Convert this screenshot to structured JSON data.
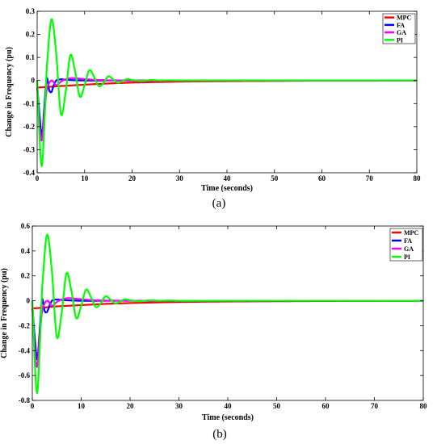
{
  "chart_data": [
    {
      "panel": "a",
      "type": "line",
      "caption": "(a)",
      "xlabel": "Time (seconds)",
      "ylabel": "Change in Frequency (pu)",
      "xlim": [
        0,
        80
      ],
      "ylim": [
        -0.4,
        0.3
      ],
      "xticks": [
        0,
        10,
        20,
        30,
        40,
        50,
        60,
        70,
        80
      ],
      "yticks": [
        0.3,
        0.2,
        0.1,
        0,
        -0.1,
        -0.2,
        -0.3,
        -0.4
      ],
      "ytick_labels": [
        "0.3",
        "0.2",
        "0.1",
        "0",
        "-0.1",
        "-0.2",
        "-0.3",
        "-0.4"
      ],
      "legend_position": "top-right",
      "series": [
        {
          "name": "MPC",
          "color": "#ff0000",
          "x": [
            0,
            0.5,
            2,
            5,
            10,
            15,
            20,
            30,
            40,
            50,
            60,
            70,
            80
          ],
          "y": [
            -0.03,
            -0.03,
            -0.028,
            -0.024,
            -0.018,
            -0.013,
            -0.009,
            -0.005,
            -0.003,
            -0.002,
            -0.001,
            -0.001,
            0
          ]
        },
        {
          "name": "FA",
          "color": "#0000ff",
          "x": [
            0,
            0.5,
            1,
            1.5,
            2,
            2.5,
            3,
            3.5,
            4,
            5,
            6,
            8,
            10,
            15,
            20,
            30,
            40,
            80
          ],
          "y": [
            -0.03,
            -0.15,
            -0.24,
            -0.12,
            0.01,
            -0.04,
            -0.05,
            -0.02,
            0.0,
            0.005,
            0.003,
            0.001,
            0,
            0,
            0,
            0,
            0,
            0
          ]
        },
        {
          "name": "GA",
          "color": "#ff00ff",
          "x": [
            0,
            0.5,
            1,
            1.5,
            2,
            3,
            4,
            5,
            6,
            7,
            8,
            9,
            10,
            12,
            15,
            20,
            30,
            40,
            80
          ],
          "y": [
            -0.03,
            -0.2,
            -0.26,
            -0.15,
            -0.04,
            0.0,
            -0.02,
            -0.005,
            0.005,
            0.01,
            0.01,
            0.008,
            0.006,
            0.003,
            0.001,
            0,
            0,
            0,
            0
          ]
        },
        {
          "name": "PI",
          "color": "#00ff00",
          "x": [
            0,
            0.5,
            1,
            1.5,
            2,
            3,
            4,
            5,
            6,
            7,
            8,
            9,
            10,
            11,
            12,
            13,
            14,
            15,
            16,
            17,
            18,
            19,
            20,
            22,
            24,
            26,
            28,
            30,
            35,
            40,
            80
          ],
          "y": [
            0,
            -0.25,
            -0.37,
            -0.2,
            0.05,
            0.265,
            0.12,
            -0.145,
            -0.05,
            0.11,
            0.04,
            -0.07,
            -0.02,
            0.045,
            0.015,
            -0.025,
            -0.01,
            0.018,
            0.005,
            -0.01,
            -0.002,
            0.006,
            0.002,
            -0.002,
            0.002,
            0,
            0.001,
            0,
            0,
            0,
            0
          ]
        }
      ]
    },
    {
      "panel": "b",
      "type": "line",
      "caption": "(b)",
      "xlabel": "Time (seconds)",
      "ylabel": "Change in Frequency (pu)",
      "xlim": [
        0,
        80
      ],
      "ylim": [
        -0.8,
        0.6
      ],
      "xticks": [
        0,
        10,
        20,
        30,
        40,
        50,
        60,
        70,
        80
      ],
      "yticks": [
        0.6,
        0.4,
        0.2,
        0,
        -0.2,
        -0.4,
        -0.6,
        -0.8
      ],
      "ytick_labels": [
        "0.6",
        "0.4",
        "0.2",
        "0",
        "-0.2",
        "-0.4",
        "-0.6",
        "-0.8"
      ],
      "legend_position": "top-right",
      "series": [
        {
          "name": "MPC",
          "color": "#ff0000",
          "x": [
            0,
            0.5,
            2,
            5,
            10,
            15,
            20,
            30,
            40,
            50,
            60,
            70,
            80
          ],
          "y": [
            -0.06,
            -0.06,
            -0.055,
            -0.045,
            -0.035,
            -0.025,
            -0.018,
            -0.01,
            -0.006,
            -0.004,
            -0.002,
            -0.001,
            0
          ]
        },
        {
          "name": "FA",
          "color": "#0000ff",
          "x": [
            0,
            0.5,
            1,
            1.5,
            2,
            2.5,
            3,
            3.5,
            4,
            5,
            6,
            8,
            10,
            15,
            20,
            30,
            40,
            80
          ],
          "y": [
            -0.06,
            -0.3,
            -0.47,
            -0.25,
            0.01,
            -0.08,
            -0.09,
            -0.04,
            0.0,
            0.01,
            0.006,
            0.002,
            0,
            0,
            0,
            0,
            0,
            0
          ]
        },
        {
          "name": "GA",
          "color": "#ff00ff",
          "x": [
            0,
            0.5,
            1,
            1.5,
            2,
            3,
            4,
            5,
            6,
            7,
            8,
            9,
            10,
            12,
            15,
            20,
            30,
            40,
            80
          ],
          "y": [
            -0.06,
            -0.4,
            -0.53,
            -0.3,
            -0.08,
            0.0,
            -0.04,
            -0.01,
            0.01,
            0.02,
            0.02,
            0.016,
            0.012,
            0.006,
            0.002,
            0,
            0,
            0,
            0
          ]
        },
        {
          "name": "PI",
          "color": "#00ff00",
          "x": [
            0,
            0.5,
            1,
            1.5,
            2,
            3,
            4,
            5,
            6,
            7,
            8,
            9,
            10,
            11,
            12,
            13,
            14,
            15,
            16,
            17,
            18,
            19,
            20,
            22,
            24,
            26,
            28,
            30,
            35,
            40,
            80
          ],
          "y": [
            0,
            -0.5,
            -0.74,
            -0.4,
            0.1,
            0.53,
            0.24,
            -0.29,
            -0.1,
            0.22,
            0.08,
            -0.14,
            -0.04,
            0.09,
            0.03,
            -0.05,
            -0.02,
            0.036,
            0.01,
            -0.02,
            -0.004,
            0.012,
            0.004,
            -0.004,
            0.004,
            0,
            0.002,
            0,
            0,
            0,
            0
          ]
        }
      ]
    }
  ]
}
